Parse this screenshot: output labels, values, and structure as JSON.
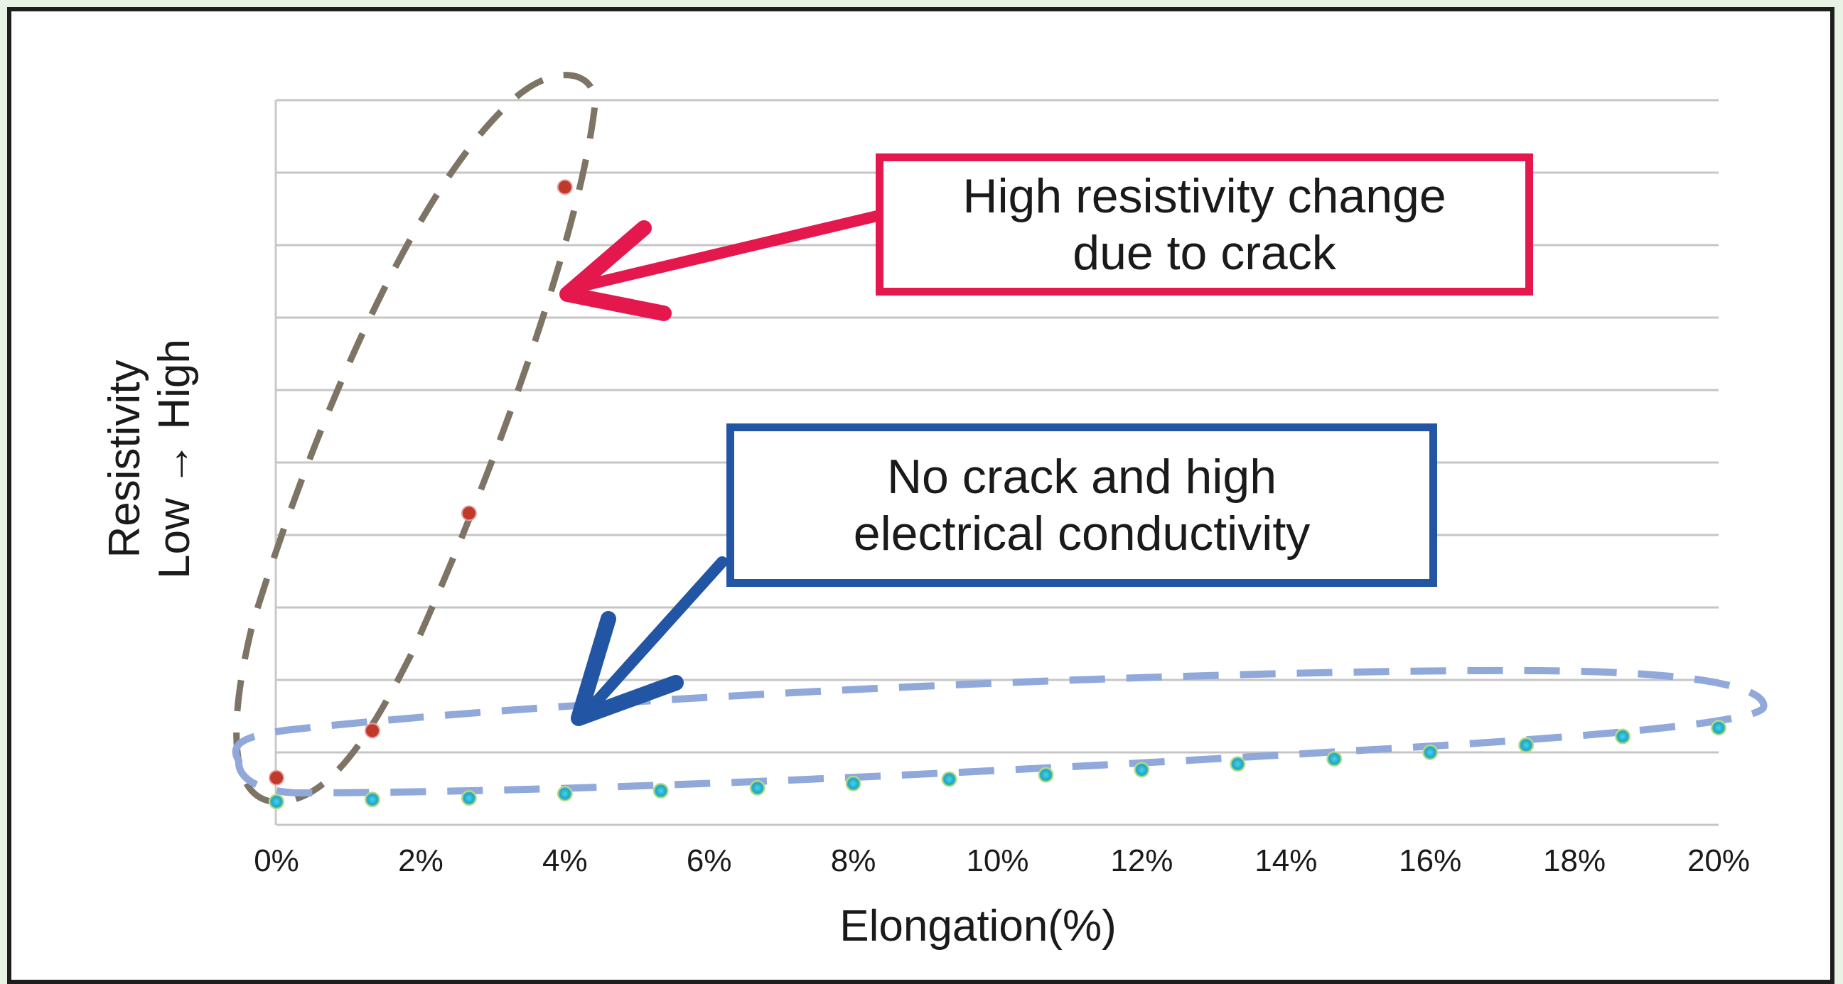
{
  "chart_data": {
    "type": "scatter",
    "title": "",
    "xlabel": "Elongation(%)",
    "ylabel_line1": "Resistivity",
    "ylabel_line2": "Low → High",
    "x_tick_labels": [
      "0%",
      "2%",
      "4%",
      "6%",
      "8%",
      "10%",
      "12%",
      "14%",
      "16%",
      "18%",
      "20%"
    ],
    "x_ticks": [
      0,
      2,
      4,
      6,
      8,
      10,
      12,
      14,
      16,
      18,
      20
    ],
    "xlim": [
      0,
      20
    ],
    "ylim": [
      0,
      10
    ],
    "y_tick_labels_shown": false,
    "grid": true,
    "series": [
      {
        "color": "#c0392b",
        "x": [
          0,
          1.33,
          2.67,
          4.0
        ],
        "y": [
          0.65,
          1.3,
          4.3,
          8.8
        ]
      },
      {
        "color": "#1ba8c8",
        "x": [
          0,
          1.33,
          2.67,
          4.0,
          5.33,
          6.67,
          8.0,
          9.33,
          10.67,
          12.0,
          13.33,
          14.67,
          16.0,
          17.33,
          18.67,
          20.0
        ],
        "y": [
          0.32,
          0.35,
          0.37,
          0.43,
          0.47,
          0.51,
          0.57,
          0.63,
          0.69,
          0.76,
          0.84,
          0.91,
          1.0,
          1.1,
          1.22,
          1.34
        ]
      }
    ],
    "annotations": [
      {
        "lines": [
          "High resistivity change",
          "due to crack"
        ],
        "color": "#e5184e"
      },
      {
        "lines": [
          "No crack and high",
          "electrical conductivity"
        ],
        "color": "#2255a4"
      }
    ]
  }
}
